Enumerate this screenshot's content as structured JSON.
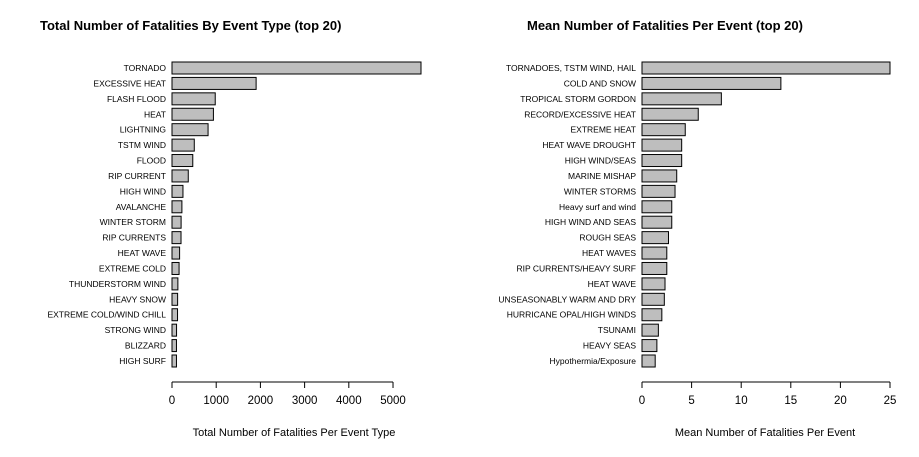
{
  "colors": {
    "bar_fill": "#bebebe",
    "bar_stroke": "#000000",
    "background": "#ffffff"
  },
  "chart_data": [
    {
      "type": "bar",
      "orientation": "horizontal",
      "title": "Total Number of Fatalities By Event Type (top 20)",
      "xlabel": "Total Number of Fatalities Per Event Type",
      "ylabel": "",
      "xlim": [
        0,
        5633
      ],
      "xticks": [
        0,
        1000,
        2000,
        3000,
        4000,
        5000
      ],
      "xtick_labels": [
        "0",
        "1000",
        "2000",
        "3000",
        "4000",
        "5000"
      ],
      "categories": [
        "TORNADO",
        "EXCESSIVE HEAT",
        "FLASH FLOOD",
        "HEAT",
        "LIGHTNING",
        "TSTM WIND",
        "FLOOD",
        "RIP CURRENT",
        "HIGH WIND",
        "AVALANCHE",
        "WINTER STORM",
        "RIP CURRENTS",
        "HEAT WAVE",
        "EXTREME COLD",
        "THUNDERSTORM WIND",
        "HEAVY SNOW",
        "EXTREME COLD/WIND CHILL",
        "STRONG WIND",
        "BLIZZARD",
        "HIGH SURF"
      ],
      "values": [
        5633,
        1903,
        978,
        937,
        816,
        504,
        470,
        368,
        248,
        224,
        206,
        204,
        172,
        160,
        133,
        127,
        125,
        103,
        101,
        101
      ],
      "grid": false
    },
    {
      "type": "bar",
      "orientation": "horizontal",
      "title": "Mean Number of Fatalities Per Event (top 20)",
      "xlabel": "Mean Number of Fatalities Per Event",
      "ylabel": "",
      "xlim": [
        0,
        25
      ],
      "xticks": [
        0,
        5,
        10,
        15,
        20,
        25
      ],
      "xtick_labels": [
        "0",
        "5",
        "10",
        "15",
        "20",
        "25"
      ],
      "categories": [
        "TORNADOES, TSTM WIND, HAIL",
        "COLD AND SNOW",
        "TROPICAL STORM GORDON",
        "RECORD/EXCESSIVE HEAT",
        "EXTREME HEAT",
        "HEAT WAVE DROUGHT",
        "HIGH WIND/SEAS",
        "MARINE MISHAP",
        "WINTER STORMS",
        "Heavy surf and wind",
        "HIGH WIND AND SEAS",
        "ROUGH SEAS",
        "HEAT WAVES",
        "RIP CURRENTS/HEAVY SURF",
        "HEAT WAVE",
        "UNSEASONABLY WARM AND DRY",
        "HURRICANE OPAL/HIGH WINDS",
        "TSUNAMI",
        "HEAVY SEAS",
        "Hypothermia/Exposure"
      ],
      "values": [
        25,
        14,
        8,
        5.67,
        4.36,
        4,
        4,
        3.5,
        3.33,
        3,
        3,
        2.67,
        2.5,
        2.5,
        2.32,
        2.25,
        2,
        1.65,
        1.5,
        1.33
      ],
      "grid": false
    }
  ]
}
